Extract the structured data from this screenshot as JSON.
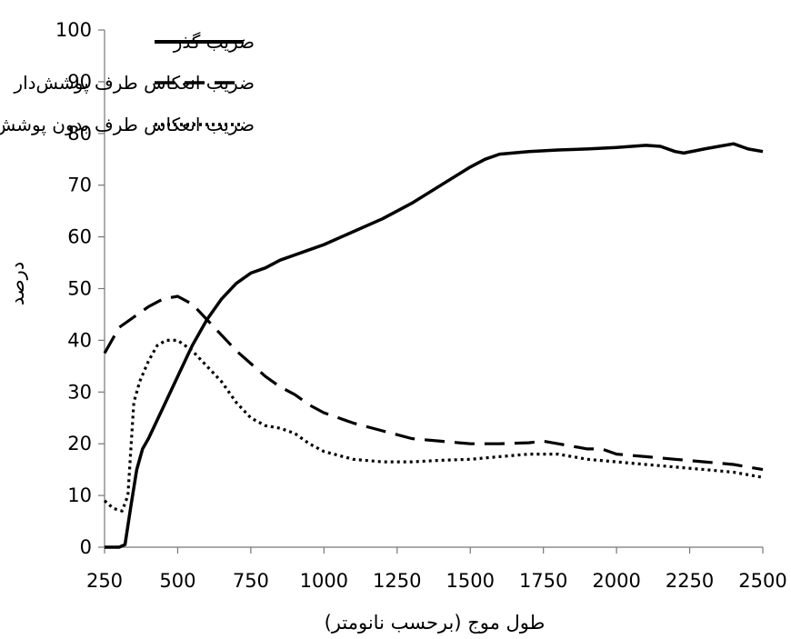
{
  "chart_data": {
    "type": "line",
    "xlabel": "طول موج (برحسب نانومتر)",
    "ylabel": "درصد",
    "xlim": [
      250,
      2500
    ],
    "ylim": [
      0,
      100
    ],
    "xticks": [
      "250",
      "500",
      "750",
      "1000",
      "1250",
      "1500",
      "1750",
      "2000",
      "2250",
      "2500"
    ],
    "yticks": [
      "0",
      "10",
      "20",
      "30",
      "40",
      "50",
      "60",
      "70",
      "80",
      "90",
      "100"
    ],
    "grid": false,
    "legend_position": "top",
    "series": [
      {
        "name": "ضریب گذر",
        "style": "solid",
        "color": "#000000",
        "x": [
          250,
          300,
          320,
          340,
          360,
          380,
          400,
          450,
          500,
          550,
          600,
          650,
          700,
          750,
          800,
          850,
          900,
          950,
          1000,
          1100,
          1200,
          1300,
          1400,
          1500,
          1550,
          1600,
          1700,
          1800,
          1900,
          2000,
          2100,
          2150,
          2200,
          2230,
          2300,
          2350,
          2400,
          2450,
          2500
        ],
        "y": [
          0,
          0,
          0.5,
          8,
          15,
          19,
          21,
          27,
          33,
          39,
          44,
          48,
          51,
          53,
          54,
          55.5,
          56.5,
          57.5,
          58.5,
          61,
          63.5,
          66.5,
          70,
          73.5,
          75,
          76,
          76.5,
          76.8,
          77,
          77.3,
          77.7,
          77.5,
          76.5,
          76.2,
          77,
          77.5,
          78,
          77,
          76.5
        ]
      },
      {
        "name": "ضریب انعکاس طرف پوشش‌دار",
        "style": "dashed",
        "color": "#000000",
        "x": [
          250,
          300,
          350,
          400,
          450,
          500,
          550,
          600,
          650,
          700,
          750,
          800,
          850,
          900,
          950,
          1000,
          1100,
          1200,
          1300,
          1400,
          1500,
          1600,
          1700,
          1750,
          1800,
          1850,
          1900,
          1950,
          2000,
          2100,
          2200,
          2300,
          2400,
          2500
        ],
        "y": [
          37.5,
          42.5,
          44.5,
          46.5,
          48,
          48.5,
          47,
          44,
          41,
          38,
          35.5,
          33,
          31,
          29.5,
          27.5,
          26,
          24,
          22.5,
          21,
          20.5,
          20,
          20,
          20.2,
          20.5,
          20,
          19.5,
          19,
          19,
          18,
          17.5,
          17,
          16.5,
          16,
          15
        ]
      },
      {
        "name": "ضریب انعکاس طرف بدون پوشش",
        "style": "dotted",
        "color": "#000000",
        "x": [
          250,
          280,
          310,
          330,
          350,
          370,
          400,
          430,
          460,
          500,
          550,
          600,
          650,
          700,
          750,
          800,
          850,
          900,
          950,
          1000,
          1100,
          1200,
          1300,
          1400,
          1500,
          1600,
          1700,
          1800,
          1900,
          2000,
          2100,
          2200,
          2300,
          2400,
          2500
        ],
        "y": [
          9,
          7.5,
          7,
          10,
          28,
          32,
          36,
          39,
          40,
          40,
          38,
          35,
          32,
          28,
          25,
          23.5,
          23,
          22,
          20,
          18.5,
          17,
          16.5,
          16.5,
          16.8,
          17,
          17.5,
          18,
          18,
          17,
          16.5,
          16,
          15.5,
          15,
          14.5,
          13.5
        ]
      }
    ]
  }
}
